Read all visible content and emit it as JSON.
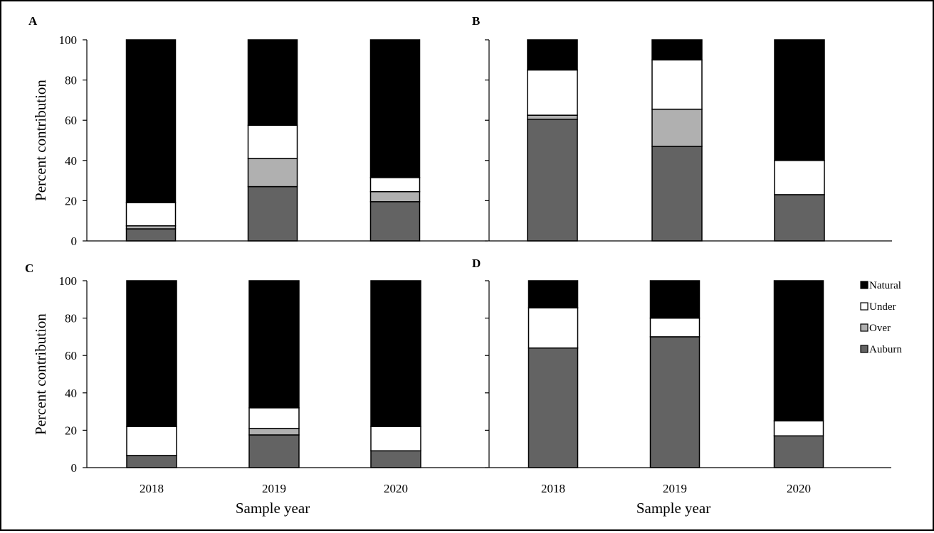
{
  "figure": {
    "xlabel": "Sample year",
    "ylabel": "Percent contribution"
  },
  "legend": {
    "placement": "right of panel D",
    "entries": [
      {
        "label": "Natural",
        "color": "#000000"
      },
      {
        "label": "Under",
        "color": "#ffffff"
      },
      {
        "label": "Over",
        "color": "#b0b0b0"
      },
      {
        "label": "Auburn",
        "color": "#636363"
      }
    ]
  },
  "chart_data": [
    {
      "type": "bar",
      "stacked": true,
      "panel_label": "A",
      "categories": [
        "2018",
        "2019",
        "2020"
      ],
      "ylim": [
        0,
        100
      ],
      "yticks": [
        0,
        20,
        40,
        60,
        80,
        100
      ],
      "ylabel": "Percent contribution",
      "xlabel": "",
      "series": [
        {
          "name": "Auburn",
          "values": [
            6,
            27,
            19.5
          ]
        },
        {
          "name": "Over",
          "values": [
            1.5,
            14,
            5
          ]
        },
        {
          "name": "Under",
          "values": [
            11.5,
            16.5,
            7
          ]
        },
        {
          "name": "Natural",
          "values": [
            81,
            42.5,
            68.5
          ]
        }
      ]
    },
    {
      "type": "bar",
      "stacked": true,
      "panel_label": "B",
      "categories": [
        "2018",
        "2019",
        "2020"
      ],
      "ylim": [
        0,
        100
      ],
      "yticks": [],
      "ylabel": "",
      "xlabel": "",
      "series": [
        {
          "name": "Auburn",
          "values": [
            60.5,
            47,
            23
          ]
        },
        {
          "name": "Over",
          "values": [
            2,
            18.5,
            0
          ]
        },
        {
          "name": "Under",
          "values": [
            22.5,
            24.5,
            17
          ]
        },
        {
          "name": "Natural",
          "values": [
            15,
            10,
            60
          ]
        }
      ]
    },
    {
      "type": "bar",
      "stacked": true,
      "panel_label": "C",
      "categories": [
        "2018",
        "2019",
        "2020"
      ],
      "ylim": [
        0,
        100
      ],
      "yticks": [
        0,
        20,
        40,
        60,
        80,
        100
      ],
      "ylabel": "Percent contribution",
      "xlabel": "Sample year",
      "series": [
        {
          "name": "Auburn",
          "values": [
            6.5,
            17.5,
            9
          ]
        },
        {
          "name": "Over",
          "values": [
            0,
            3.5,
            0
          ]
        },
        {
          "name": "Under",
          "values": [
            15.5,
            11,
            13
          ]
        },
        {
          "name": "Natural",
          "values": [
            78,
            68,
            78
          ]
        }
      ]
    },
    {
      "type": "bar",
      "stacked": true,
      "panel_label": "D",
      "categories": [
        "2018",
        "2019",
        "2020"
      ],
      "ylim": [
        0,
        100
      ],
      "yticks": [],
      "ylabel": "",
      "xlabel": "Sample year",
      "series": [
        {
          "name": "Auburn",
          "values": [
            64,
            70,
            17
          ]
        },
        {
          "name": "Over",
          "values": [
            0,
            0,
            0
          ]
        },
        {
          "name": "Under",
          "values": [
            21.5,
            10,
            8
          ]
        },
        {
          "name": "Natural",
          "values": [
            14.5,
            20,
            75
          ]
        }
      ]
    }
  ]
}
